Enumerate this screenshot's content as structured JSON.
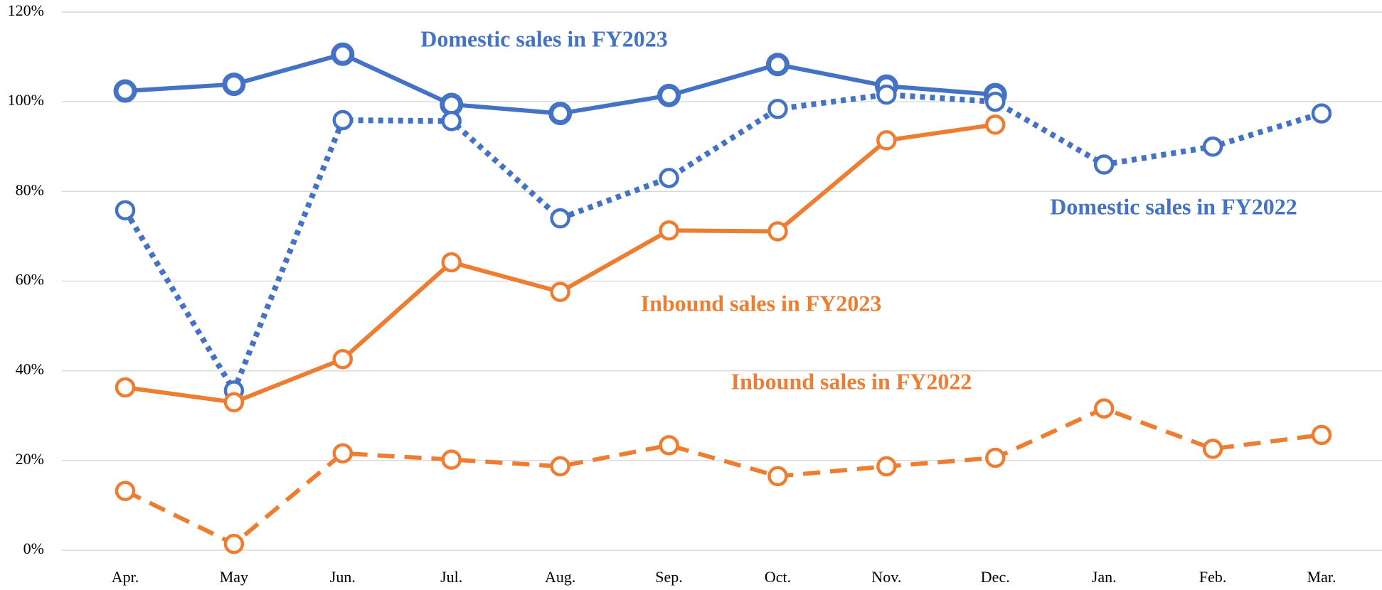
{
  "chart_data": {
    "type": "line",
    "categories": [
      "Apr.",
      "May",
      "Jun.",
      "Jul.",
      "Aug.",
      "Sep.",
      "Oct.",
      "Nov.",
      "Dec.",
      "Jan.",
      "Feb.",
      "Mar."
    ],
    "series": [
      {
        "name": "Domestic sales in FY2023",
        "color": "#4472c4",
        "style": "solid",
        "values": [
          102.4,
          103.9,
          110.6,
          99.4,
          97.4,
          101.4,
          108.3,
          103.5,
          101.6,
          null,
          null,
          null
        ]
      },
      {
        "name": "Domestic sales in FY2022",
        "color": "#4472c4",
        "style": "dotted",
        "values": [
          75.8,
          35.6,
          95.9,
          95.7,
          74.0,
          83.0,
          98.4,
          101.6,
          100.0,
          86.0,
          90.0,
          97.4
        ]
      },
      {
        "name": "Inbound sales in FY2023",
        "color": "#ed7d31",
        "style": "solid",
        "values": [
          36.3,
          33.0,
          42.6,
          64.2,
          57.6,
          71.3,
          71.1,
          91.4,
          94.9,
          null,
          null,
          null
        ]
      },
      {
        "name": "Inbound sales in FY2022",
        "color": "#ed7d31",
        "style": "dashed",
        "values": [
          13.2,
          1.4,
          21.6,
          20.2,
          18.7,
          23.4,
          16.5,
          18.7,
          20.6,
          31.6,
          22.6,
          25.7
        ]
      }
    ],
    "ylim": [
      0,
      120
    ],
    "yticks": [
      {
        "value": 0,
        "label": "0%"
      },
      {
        "value": 20,
        "label": "20%"
      },
      {
        "value": 40,
        "label": "40%"
      },
      {
        "value": 60,
        "label": "60%"
      },
      {
        "value": 80,
        "label": "80%"
      },
      {
        "value": 100,
        "label": "100%"
      },
      {
        "value": 120,
        "label": "120%"
      }
    ],
    "grid": true
  }
}
